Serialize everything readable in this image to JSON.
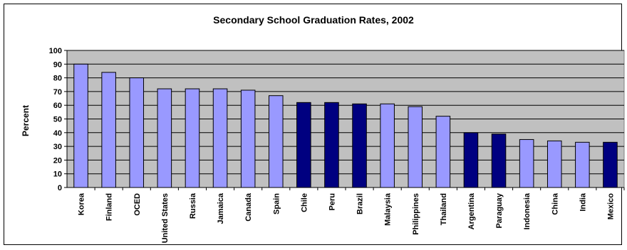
{
  "chart_data": {
    "type": "bar",
    "title": "Secondary School Graduation Rates, 2002",
    "xlabel": "",
    "ylabel": "Percent",
    "ylim": [
      0,
      100
    ],
    "ytick_step": 10,
    "grid": true,
    "legend": "none",
    "categories": [
      "Korea",
      "Finland",
      "OCED",
      "United States",
      "Russia",
      "Jamaica",
      "Canada",
      "Spain",
      "Chile",
      "Peru",
      "Brazil",
      "Malaysia",
      "Philippines",
      "Thailand",
      "Argentina",
      "Paraguay",
      "Indonesia",
      "China",
      "India",
      "Mexico"
    ],
    "values": [
      90,
      84,
      80,
      72,
      72,
      72,
      71,
      67,
      62,
      62,
      61,
      61,
      59,
      52,
      40,
      39,
      35,
      34,
      33,
      33
    ],
    "bar_groups": [
      "light",
      "light",
      "light",
      "light",
      "light",
      "light",
      "light",
      "light",
      "dark",
      "dark",
      "dark",
      "light",
      "light",
      "light",
      "dark",
      "dark",
      "light",
      "light",
      "light",
      "dark"
    ],
    "colors": {
      "light": "#9999ff",
      "dark": "#000080",
      "plot_background": "#c0c0c0",
      "gridline": "#000000"
    }
  }
}
